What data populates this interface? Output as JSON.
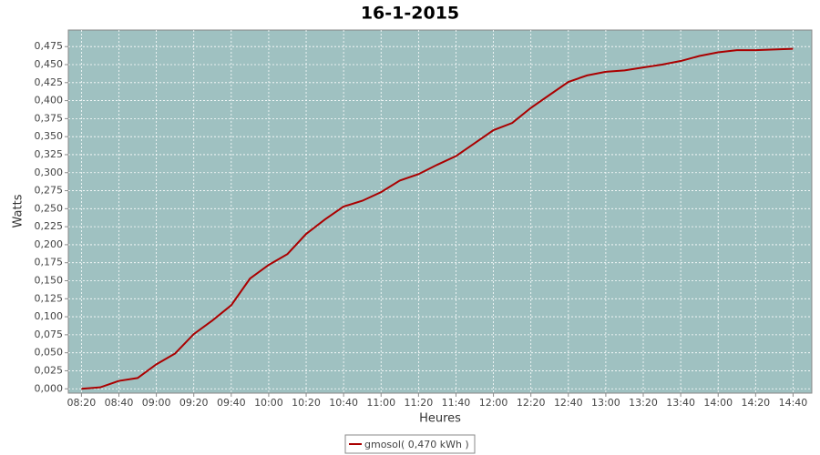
{
  "chart_data": {
    "type": "line",
    "title": "16-1-2015",
    "x_label": "Heures",
    "y_label": "Watts",
    "x": [
      500,
      510,
      520,
      530,
      540,
      550,
      560,
      570,
      580,
      590,
      600,
      610,
      620,
      630,
      640,
      650,
      660,
      670,
      680,
      690,
      700,
      710,
      720,
      730,
      740,
      750,
      760,
      770,
      780,
      790,
      800,
      810,
      820,
      830,
      840,
      850,
      860,
      870,
      880
    ],
    "series": [
      {
        "name": "gmosol( 0,470 kWh )",
        "color": "#aa0000",
        "values": [
          0.0,
          0.002,
          0.011,
          0.015,
          0.034,
          0.049,
          0.076,
          0.095,
          0.116,
          0.153,
          0.172,
          0.187,
          0.215,
          0.235,
          0.253,
          0.261,
          0.273,
          0.289,
          0.298,
          0.311,
          0.323,
          0.341,
          0.359,
          0.369,
          0.39,
          0.408,
          0.426,
          0.435,
          0.44,
          0.442,
          0.446,
          0.45,
          0.455,
          0.462,
          0.467,
          0.47,
          0.47,
          0.471,
          0.472
        ]
      }
    ],
    "xlim": [
      493,
      890
    ],
    "ylim": [
      -0.006,
      0.498
    ],
    "xticks": [
      {
        "value": 500,
        "label": "08:20"
      },
      {
        "value": 520,
        "label": "08:40"
      },
      {
        "value": 540,
        "label": "09:00"
      },
      {
        "value": 560,
        "label": "09:20"
      },
      {
        "value": 580,
        "label": "09:40"
      },
      {
        "value": 600,
        "label": "10:00"
      },
      {
        "value": 620,
        "label": "10:20"
      },
      {
        "value": 640,
        "label": "10:40"
      },
      {
        "value": 660,
        "label": "11:00"
      },
      {
        "value": 680,
        "label": "11:20"
      },
      {
        "value": 700,
        "label": "11:40"
      },
      {
        "value": 720,
        "label": "12:00"
      },
      {
        "value": 740,
        "label": "12:20"
      },
      {
        "value": 760,
        "label": "12:40"
      },
      {
        "value": 780,
        "label": "13:00"
      },
      {
        "value": 800,
        "label": "13:20"
      },
      {
        "value": 820,
        "label": "13:40"
      },
      {
        "value": 840,
        "label": "14:00"
      },
      {
        "value": 860,
        "label": "14:20"
      },
      {
        "value": 880,
        "label": "14:40"
      }
    ],
    "yticks": [
      {
        "value": 0,
        "label": "0,000"
      },
      {
        "value": 0.025,
        "label": "0,025"
      },
      {
        "value": 0.05,
        "label": "0,050"
      },
      {
        "value": 0.075,
        "label": "0,075"
      },
      {
        "value": 0.1,
        "label": "0,100"
      },
      {
        "value": 0.125,
        "label": "0,125"
      },
      {
        "value": 0.15,
        "label": "0,150"
      },
      {
        "value": 0.175,
        "label": "0,175"
      },
      {
        "value": 0.2,
        "label": "0,200"
      },
      {
        "value": 0.225,
        "label": "0,225"
      },
      {
        "value": 0.25,
        "label": "0,250"
      },
      {
        "value": 0.275,
        "label": "0,275"
      },
      {
        "value": 0.3,
        "label": "0,300"
      },
      {
        "value": 0.325,
        "label": "0,325"
      },
      {
        "value": 0.35,
        "label": "0,350"
      },
      {
        "value": 0.375,
        "label": "0,375"
      },
      {
        "value": 0.4,
        "label": "0,400"
      },
      {
        "value": 0.425,
        "label": "0,425"
      },
      {
        "value": 0.45,
        "label": "0,450"
      },
      {
        "value": 0.475,
        "label": "0,475"
      }
    ],
    "grid": true,
    "plot_background": "#9fc1c1"
  }
}
